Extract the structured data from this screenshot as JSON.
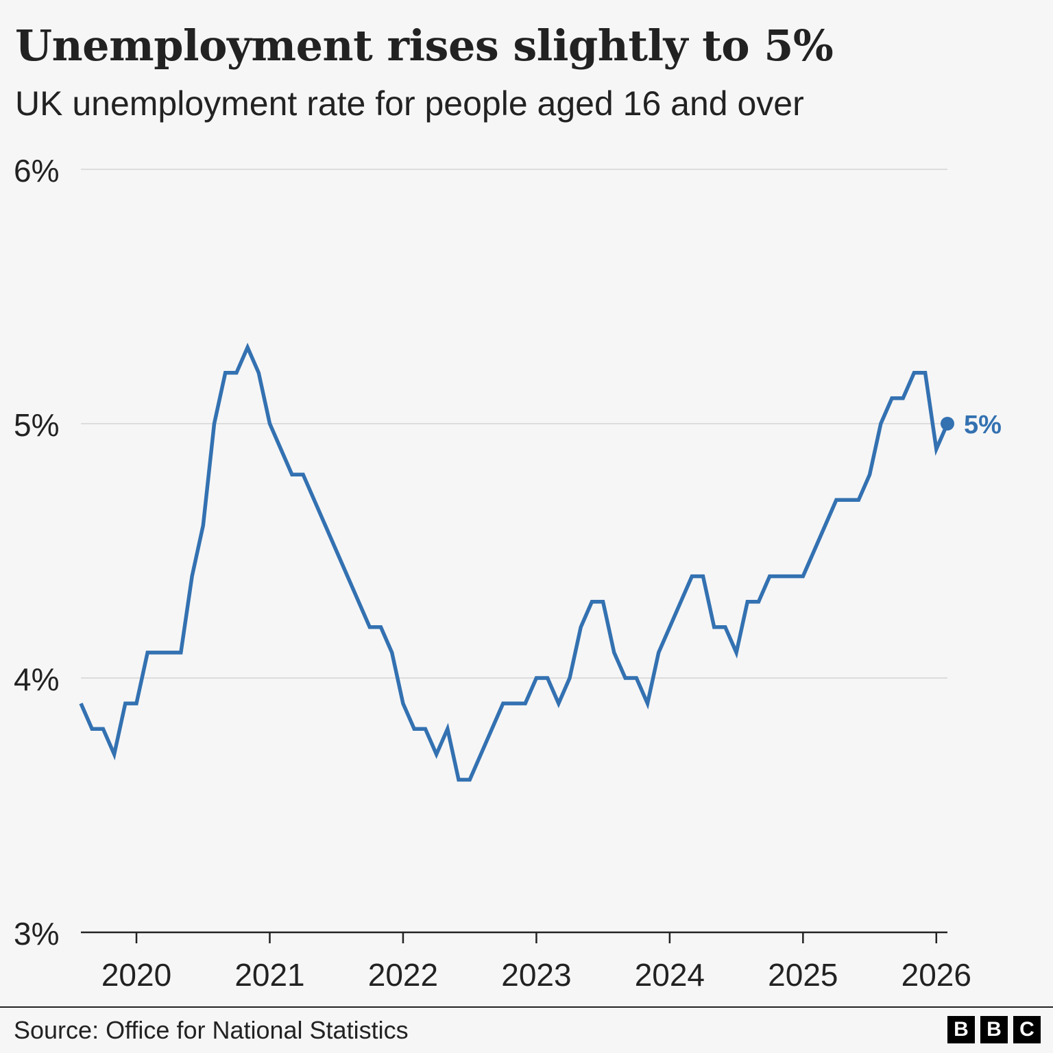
{
  "header": {
    "title": "Unemployment rises slightly to 5%",
    "subtitle": "UK unemployment rate for people aged 16 and over"
  },
  "footer": {
    "source": "Source: Office for National Statistics",
    "logo_letters": [
      "B",
      "B",
      "C"
    ]
  },
  "colors": {
    "line": "#3371b1",
    "grid": "#dcdcdc",
    "axis": "#222222",
    "background": "#f6f6f6"
  },
  "chart_data": {
    "type": "line",
    "title": "Unemployment rises slightly to 5%",
    "subtitle": "UK unemployment rate for people aged 16 and over",
    "xlabel": "",
    "ylabel": "",
    "ylim": [
      3,
      6
    ],
    "xlim": [
      "2019-08",
      "2026-02"
    ],
    "y_ticks": [
      {
        "value": 6,
        "label": "6%"
      },
      {
        "value": 5,
        "label": "5%"
      },
      {
        "value": 4,
        "label": "4%"
      },
      {
        "value": 3,
        "label": "3%"
      }
    ],
    "x_ticks": [
      {
        "value": "2020-01",
        "label": "2020"
      },
      {
        "value": "2021-01",
        "label": "2021"
      },
      {
        "value": "2022-01",
        "label": "2022"
      },
      {
        "value": "2023-01",
        "label": "2023"
      },
      {
        "value": "2024-01",
        "label": "2024"
      },
      {
        "value": "2025-01",
        "label": "2025"
      },
      {
        "value": "2026-01",
        "label": "2026"
      }
    ],
    "grid": true,
    "end_label": "5%",
    "series": [
      {
        "x": [
          "2019-08",
          "2019-09",
          "2019-10",
          "2019-11",
          "2019-12",
          "2020-01",
          "2020-02",
          "2020-03",
          "2020-04",
          "2020-05",
          "2020-06",
          "2020-07",
          "2020-08",
          "2020-09",
          "2020-10",
          "2020-11",
          "2020-12",
          "2021-01",
          "2021-02",
          "2021-03",
          "2021-04",
          "2021-05",
          "2021-06",
          "2021-07",
          "2021-08",
          "2021-09",
          "2021-10",
          "2021-11",
          "2021-12",
          "2022-01",
          "2022-02",
          "2022-03",
          "2022-04",
          "2022-05",
          "2022-06",
          "2022-07",
          "2022-08",
          "2022-09",
          "2022-10",
          "2022-11",
          "2022-12",
          "2023-01",
          "2023-02",
          "2023-03",
          "2023-04",
          "2023-05",
          "2023-06",
          "2023-07",
          "2023-08",
          "2023-09",
          "2023-10",
          "2023-11",
          "2023-12",
          "2024-01",
          "2024-02",
          "2024-03",
          "2024-04",
          "2024-05",
          "2024-06",
          "2024-07",
          "2024-08",
          "2024-09",
          "2024-10",
          "2024-11",
          "2024-12",
          "2025-01",
          "2025-02",
          "2025-03",
          "2025-04",
          "2025-05",
          "2025-06",
          "2025-07",
          "2025-08",
          "2025-09",
          "2025-10",
          "2025-11",
          "2025-12",
          "2026-01",
          "2026-02"
        ],
        "values": [
          3.9,
          3.8,
          3.8,
          3.7,
          3.9,
          3.9,
          4.1,
          4.1,
          4.1,
          4.1,
          4.4,
          4.6,
          5.0,
          5.2,
          5.2,
          5.3,
          5.2,
          5.0,
          4.9,
          4.8,
          4.8,
          4.7,
          4.6,
          4.5,
          4.4,
          4.3,
          4.2,
          4.2,
          4.1,
          3.9,
          3.8,
          3.8,
          3.7,
          3.8,
          3.6,
          3.6,
          3.7,
          3.8,
          3.9,
          3.9,
          3.9,
          4.0,
          4.0,
          3.9,
          4.0,
          4.2,
          4.3,
          4.3,
          4.1,
          4.0,
          4.0,
          3.9,
          4.1,
          4.2,
          4.3,
          4.4,
          4.4,
          4.2,
          4.2,
          4.1,
          4.3,
          4.3,
          4.4,
          4.4,
          4.4,
          4.4,
          4.5,
          4.6,
          4.7,
          4.7,
          4.7,
          4.8,
          5.0,
          5.1,
          5.1,
          5.2,
          5.2,
          4.9,
          5.0
        ]
      }
    ]
  }
}
